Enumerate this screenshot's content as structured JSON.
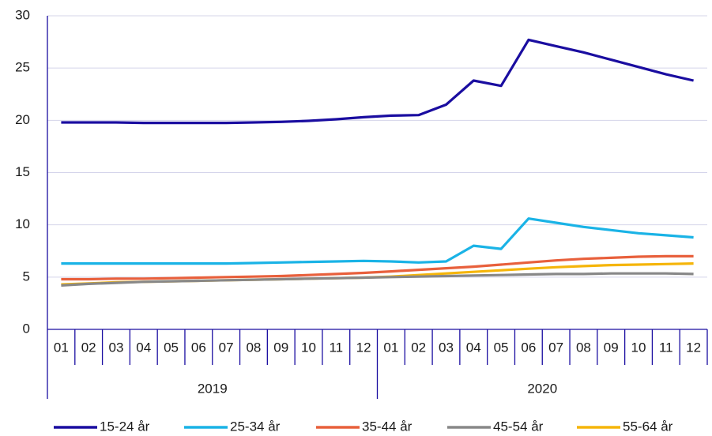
{
  "chart_data": {
    "type": "line",
    "categories": [
      "01",
      "02",
      "03",
      "04",
      "05",
      "06",
      "07",
      "08",
      "09",
      "10",
      "11",
      "12",
      "01",
      "02",
      "03",
      "04",
      "05",
      "06",
      "07",
      "08",
      "09",
      "10",
      "11",
      "12"
    ],
    "x_groups": [
      "2019",
      "2020"
    ],
    "ylim": [
      0,
      30
    ],
    "yticks": [
      0,
      5,
      10,
      15,
      20,
      25,
      30
    ],
    "grid": true,
    "series": [
      {
        "name": "15-24 år",
        "color": "#1a0da0",
        "values": [
          19.8,
          19.8,
          19.8,
          19.75,
          19.75,
          19.75,
          19.75,
          19.8,
          19.85,
          19.95,
          20.1,
          20.3,
          20.45,
          20.5,
          21.5,
          23.8,
          23.3,
          27.7,
          27.1,
          26.5,
          25.8,
          25.1,
          24.4,
          23.8
        ]
      },
      {
        "name": "25-34 år",
        "color": "#1ab3e6",
        "values": [
          6.3,
          6.3,
          6.3,
          6.3,
          6.3,
          6.3,
          6.3,
          6.35,
          6.4,
          6.45,
          6.5,
          6.55,
          6.5,
          6.4,
          6.5,
          8.0,
          7.7,
          10.6,
          10.2,
          9.8,
          9.5,
          9.2,
          9.0,
          8.8
        ]
      },
      {
        "name": "35-44 år",
        "color": "#e8603c",
        "values": [
          4.8,
          4.8,
          4.85,
          4.85,
          4.9,
          4.95,
          5.0,
          5.05,
          5.1,
          5.2,
          5.3,
          5.4,
          5.55,
          5.7,
          5.85,
          6.0,
          6.2,
          6.4,
          6.6,
          6.75,
          6.85,
          6.95,
          7.0,
          7.0
        ]
      },
      {
        "name": "45-54 år",
        "color": "#888888",
        "values": [
          4.2,
          4.35,
          4.45,
          4.55,
          4.6,
          4.65,
          4.7,
          4.75,
          4.8,
          4.85,
          4.9,
          4.95,
          5.0,
          5.05,
          5.1,
          5.15,
          5.2,
          5.25,
          5.3,
          5.3,
          5.35,
          5.35,
          5.35,
          5.3
        ]
      },
      {
        "name": "55-64 år",
        "color": "#f5b50a",
        "values": [
          4.3,
          4.4,
          4.5,
          4.55,
          4.6,
          4.65,
          4.7,
          4.75,
          4.8,
          4.85,
          4.9,
          4.95,
          5.05,
          5.2,
          5.35,
          5.5,
          5.65,
          5.8,
          5.95,
          6.05,
          6.15,
          6.2,
          6.25,
          6.3
        ]
      }
    ]
  }
}
